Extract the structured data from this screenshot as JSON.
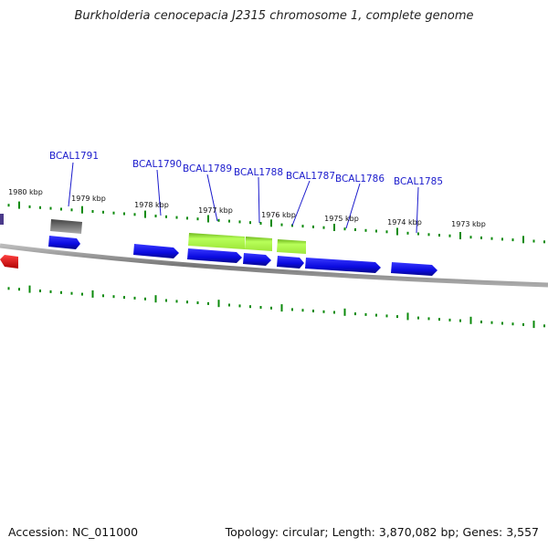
{
  "title": "Burkholderia cenocepacia J2315 chromosome 1, complete genome",
  "accession": "Accession: NC_011000",
  "topology": "Topology: circular; Length: 3,870,082 bp; Genes: 3,557",
  "colors": {
    "tick": "#0a8a0a",
    "backbone": "#8a8a8a",
    "gene_blue": "#1010ee",
    "gene_green": "#9cee30",
    "gene_gray": "#666666",
    "gene_red": "#ee1010",
    "label_blue": "#1a1acc"
  },
  "scale_labels": [
    "1980 kbp",
    "1979 kbp",
    "1978 kbp",
    "1977 kbp",
    "1976 kbp",
    "1975 kbp",
    "1974 kbp",
    "1973 kbp"
  ],
  "gene_labels": [
    "BCAL1791",
    "BCAL1790",
    "BCAL1789",
    "BCAL1788",
    "BCAL1787",
    "BCAL1786",
    "BCAL1785"
  ]
}
